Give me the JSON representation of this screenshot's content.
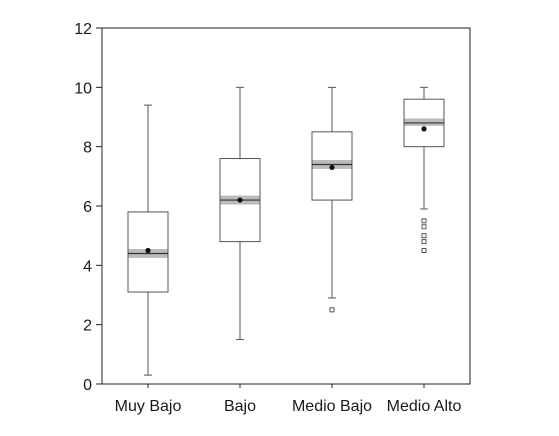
{
  "chart_data": {
    "type": "boxplot",
    "title": "",
    "xlabel": "",
    "ylabel": "",
    "ylim": [
      0,
      12
    ],
    "yticks": [
      0,
      2,
      4,
      6,
      8,
      10,
      12
    ],
    "ytick_labels": [
      "0",
      "2",
      "4",
      "6",
      "8",
      "10",
      "12"
    ],
    "grid": false,
    "legend": "none",
    "categories": [
      "Muy Bajo",
      "Bajo",
      "Medio Bajo",
      "Medio Alto"
    ],
    "boxes": [
      {
        "category": "Muy Bajo",
        "whisker_low": 0.3,
        "q1": 3.1,
        "median": 4.4,
        "q3": 5.8,
        "whisker_high": 9.4,
        "mean": 4.5,
        "median_ci": [
          4.25,
          4.55
        ],
        "outliers": []
      },
      {
        "category": "Bajo",
        "whisker_low": 1.5,
        "q1": 4.8,
        "median": 6.2,
        "q3": 7.6,
        "whisker_high": 10.0,
        "mean": 6.2,
        "median_ci": [
          6.05,
          6.35
        ],
        "outliers": []
      },
      {
        "category": "Medio Bajo",
        "whisker_low": 2.9,
        "q1": 6.2,
        "median": 7.4,
        "q3": 8.5,
        "whisker_high": 10.0,
        "mean": 7.3,
        "median_ci": [
          7.25,
          7.55
        ],
        "outliers": [
          2.5
        ]
      },
      {
        "category": "Medio Alto",
        "whisker_low": 5.9,
        "q1": 8.0,
        "median": 8.8,
        "q3": 9.6,
        "whisker_high": 10.0,
        "mean": 8.6,
        "median_ci": [
          8.7,
          8.95
        ],
        "outliers": [
          5.5,
          5.3,
          5.0,
          4.8,
          4.5
        ]
      }
    ],
    "colors": {
      "box_stroke": "#555555",
      "median_ci_fill": "#bcbcbc",
      "mean_marker": "#111111",
      "axis": "#222222"
    }
  }
}
